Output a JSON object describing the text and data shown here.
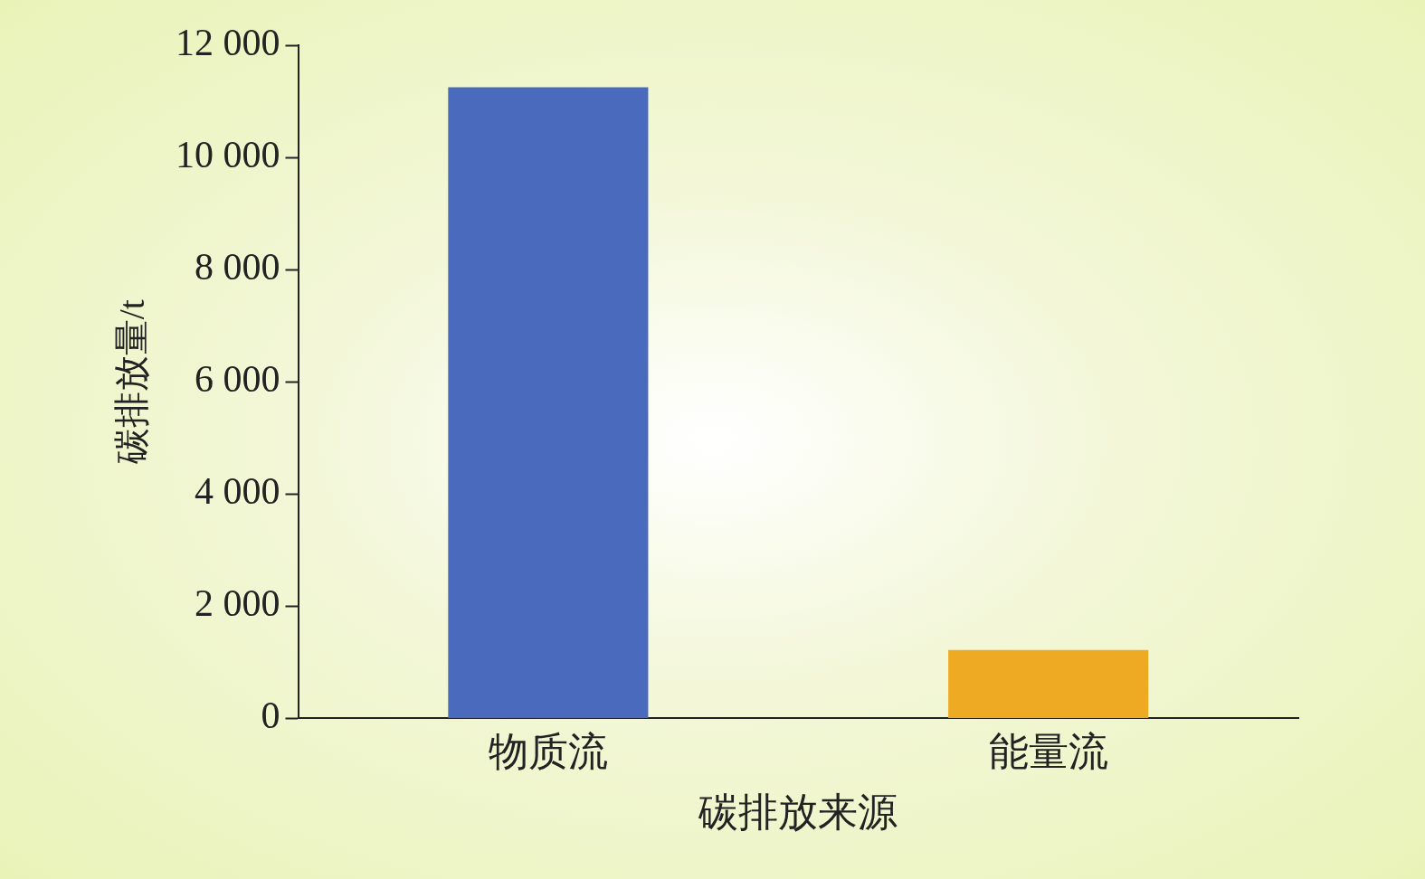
{
  "chart_data": {
    "type": "bar",
    "xlabel": "碳排放来源",
    "ylabel": "碳排放量/t",
    "categories": [
      "物质流",
      "能量流"
    ],
    "values": [
      11250,
      1220
    ],
    "colors": [
      "#4a6bbd",
      "#eeaa22"
    ],
    "ylim": [
      0,
      12000
    ],
    "yticks": [
      {
        "value": 0,
        "label": "0"
      },
      {
        "value": 2000,
        "label": "2 000"
      },
      {
        "value": 4000,
        "label": "4 000"
      },
      {
        "value": 6000,
        "label": "6 000"
      },
      {
        "value": 8000,
        "label": "8 000"
      },
      {
        "value": 10000,
        "label": "10 000"
      },
      {
        "value": 12000,
        "label": "12 000"
      }
    ],
    "grid": false,
    "legend": false
  }
}
